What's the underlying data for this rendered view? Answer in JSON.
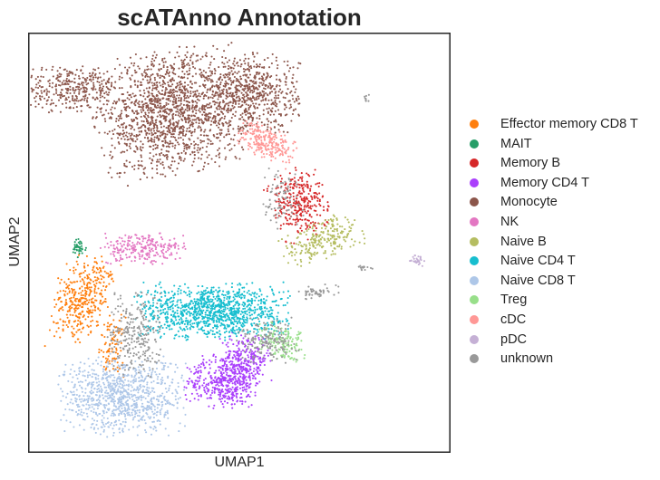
{
  "chart_data": {
    "type": "scatter",
    "title": "scATAnno Annotation",
    "xlabel": "UMAP1",
    "ylabel": "UMAP2",
    "xlim": [
      0,
      100
    ],
    "ylim": [
      0,
      100
    ],
    "grid": false,
    "ticks": false,
    "legend_position": "right",
    "series": [
      {
        "name": "Effector memory CD8 T",
        "color": "#ff7f0e",
        "clusters": [
          {
            "cx": 12.5,
            "cy": 36.5,
            "sx": 3.0,
            "sy": 5.5,
            "n": 380,
            "rot": -0.35
          },
          {
            "cx": 19.5,
            "cy": 25.0,
            "sx": 1.5,
            "sy": 3.5,
            "n": 90,
            "rot": 0
          }
        ]
      },
      {
        "name": "MAIT",
        "color": "#279e68",
        "clusters": [
          {
            "cx": 11.5,
            "cy": 48.5,
            "sx": 0.9,
            "sy": 1.2,
            "n": 40,
            "rot": 0
          }
        ]
      },
      {
        "name": "Memory B",
        "color": "#d62728",
        "clusters": [
          {
            "cx": 64.5,
            "cy": 59.5,
            "sx": 3.2,
            "sy": 3.8,
            "n": 300,
            "rot": 0.4
          }
        ]
      },
      {
        "name": "Memory CD4 T",
        "color": "#aa40fc",
        "clusters": [
          {
            "cx": 46.5,
            "cy": 16.5,
            "sx": 4.5,
            "sy": 3.0,
            "n": 420,
            "rot": 0
          },
          {
            "cx": 51.5,
            "cy": 22.0,
            "sx": 3.0,
            "sy": 3.0,
            "n": 250,
            "rot": 0
          }
        ]
      },
      {
        "name": "Monocyte",
        "color": "#8c564b",
        "clusters": [
          {
            "cx": 33.5,
            "cy": 81.5,
            "sx": 8.5,
            "sy": 7.0,
            "n": 1500,
            "rot": 0.2
          },
          {
            "cx": 10.0,
            "cy": 87.0,
            "sx": 5.5,
            "sy": 2.6,
            "n": 320,
            "rot": 0
          },
          {
            "cx": 53.0,
            "cy": 86.0,
            "sx": 5.5,
            "sy": 4.5,
            "n": 620,
            "rot": 0
          }
        ]
      },
      {
        "name": "NK",
        "color": "#e377c2",
        "clusters": [
          {
            "cx": 27.0,
            "cy": 48.5,
            "sx": 5.0,
            "sy": 1.8,
            "n": 240,
            "rot": 0
          }
        ]
      },
      {
        "name": "Naive B",
        "color": "#b5bd61",
        "clusters": [
          {
            "cx": 70.0,
            "cy": 51.0,
            "sx": 5.0,
            "sy": 2.2,
            "n": 240,
            "rot": 0.35
          }
        ]
      },
      {
        "name": "Naive CD4 T",
        "color": "#17becf",
        "clusters": [
          {
            "cx": 43.5,
            "cy": 33.5,
            "sx": 8.5,
            "sy": 3.2,
            "n": 1100,
            "rot": 0
          }
        ]
      },
      {
        "name": "Naive CD8 T",
        "color": "#aec7e8",
        "clusters": [
          {
            "cx": 22.0,
            "cy": 13.0,
            "sx": 7.0,
            "sy": 4.5,
            "n": 900,
            "rot": 0
          }
        ]
      },
      {
        "name": "Treg",
        "color": "#98df8a",
        "clusters": [
          {
            "cx": 60.0,
            "cy": 26.0,
            "sx": 3.0,
            "sy": 2.0,
            "n": 150,
            "rot": -0.3
          }
        ]
      },
      {
        "name": "cDC",
        "color": "#ff9896",
        "clusters": [
          {
            "cx": 56.5,
            "cy": 74.0,
            "sx": 3.5,
            "sy": 1.8,
            "n": 240,
            "rot": -0.5
          }
        ]
      },
      {
        "name": "pDC",
        "color": "#c5b0d5",
        "clusters": [
          {
            "cx": 93.0,
            "cy": 45.5,
            "sx": 1.0,
            "sy": 0.6,
            "n": 30,
            "rot": -0.5
          }
        ]
      },
      {
        "name": "unknown",
        "color": "#999999",
        "clusters": [
          {
            "cx": 25.0,
            "cy": 28.0,
            "sx": 3.0,
            "sy": 5.0,
            "n": 260,
            "rot": 0
          },
          {
            "cx": 60.0,
            "cy": 61.0,
            "sx": 2.5,
            "sy": 3.5,
            "n": 90,
            "rot": 0
          },
          {
            "cx": 57.0,
            "cy": 26.5,
            "sx": 3.5,
            "sy": 2.5,
            "n": 160,
            "rot": 0
          },
          {
            "cx": 68.5,
            "cy": 38.0,
            "sx": 2.5,
            "sy": 0.8,
            "n": 50,
            "rot": 0.2
          },
          {
            "cx": 80.5,
            "cy": 44.0,
            "sx": 1.0,
            "sy": 0.4,
            "n": 14,
            "rot": 0
          },
          {
            "cx": 80.5,
            "cy": 85.0,
            "sx": 0.4,
            "sy": 0.5,
            "n": 8,
            "rot": 0
          }
        ]
      }
    ]
  }
}
